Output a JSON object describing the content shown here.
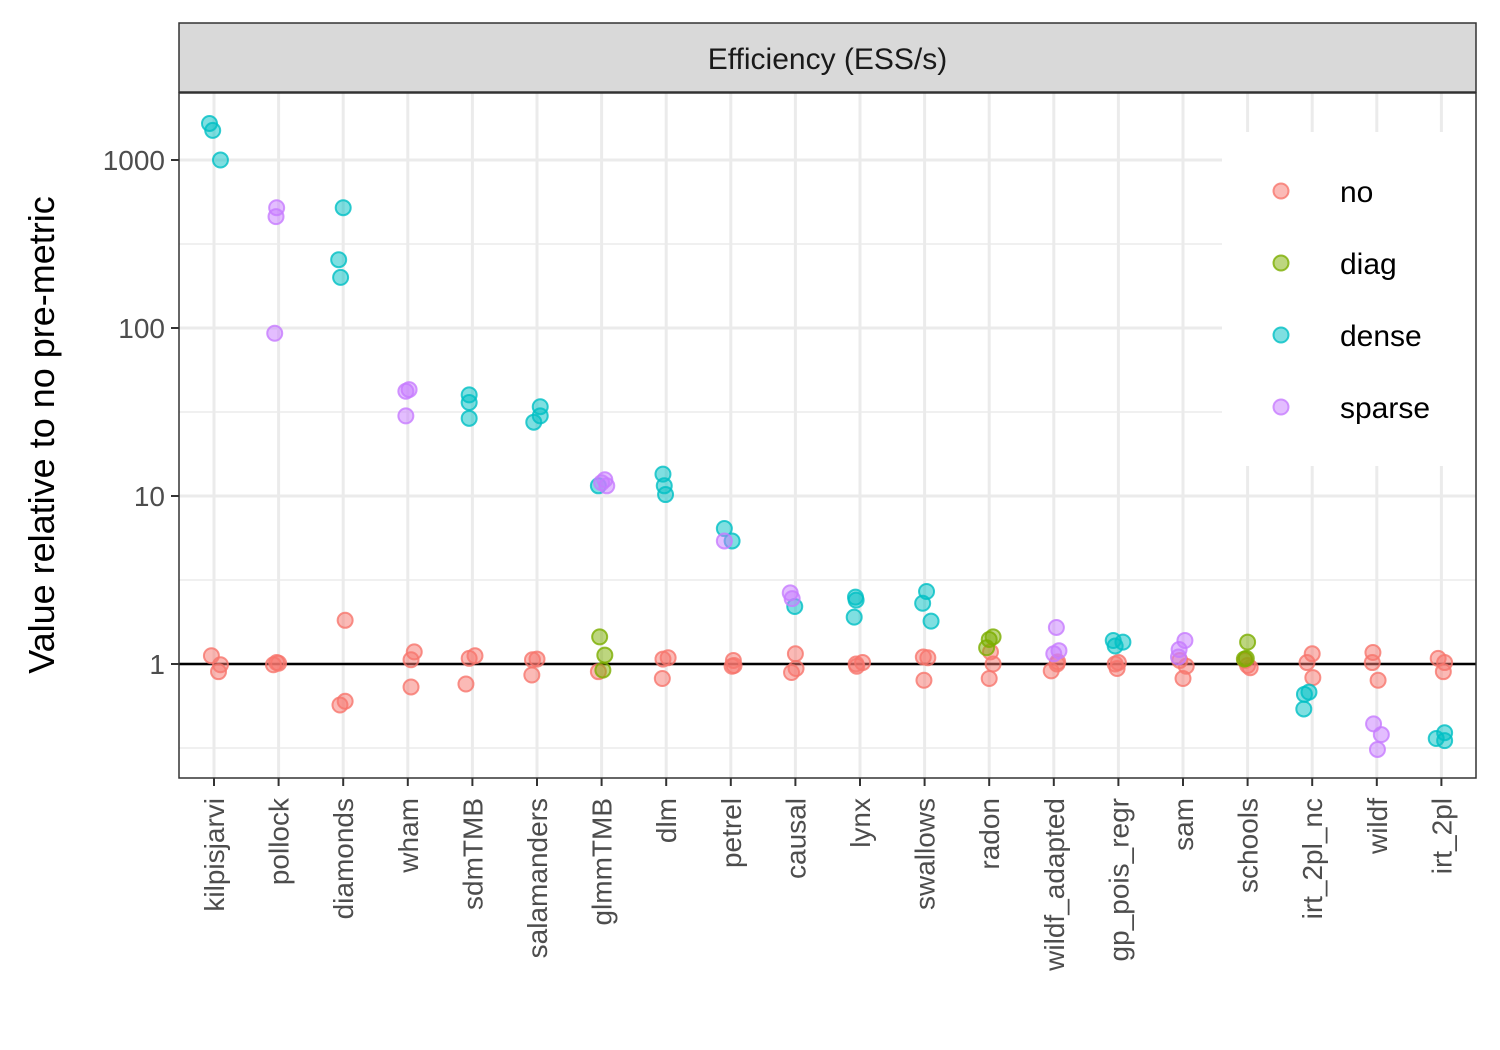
{
  "chart_data": {
    "type": "scatter",
    "facet_title": "Efficiency (ESS/s)",
    "xlabel": "",
    "ylabel": "Value relative to no pre-metric",
    "y_scale": "log10",
    "ylim": [
      0.22,
      2500
    ],
    "y_ticks": [
      1,
      10,
      100,
      1000
    ],
    "y_tick_labels": [
      "1",
      "10",
      "100",
      "1000"
    ],
    "reference_line_y": 1,
    "grid": true,
    "legend_position": "top-right",
    "categories": [
      "kilpisjarvi",
      "pollock",
      "diamonds",
      "wham",
      "sdmTMB",
      "salamanders",
      "glmmTMB",
      "dlm",
      "petrel",
      "causal",
      "lynx",
      "swallows",
      "radon",
      "wildf_adapted",
      "gp_pois_regr",
      "sam",
      "schools",
      "irt_2pl_nc",
      "wildf",
      "irt_2pl"
    ],
    "series": [
      {
        "name": "no",
        "color": "#F8766D",
        "points": [
          {
            "x": "kilpisjarvi",
            "y": 1.12,
            "j": -0.04
          },
          {
            "x": "kilpisjarvi",
            "y": 0.99,
            "j": 0.1
          },
          {
            "x": "kilpisjarvi",
            "y": 0.9,
            "j": 0.07
          },
          {
            "x": "pollock",
            "y": 0.99,
            "j": -0.08
          },
          {
            "x": "pollock",
            "y": 1.01,
            "j": 0.0
          },
          {
            "x": "pollock",
            "y": 1.02,
            "j": -0.03
          },
          {
            "x": "diamonds",
            "y": 1.82,
            "j": 0.03
          },
          {
            "x": "diamonds",
            "y": 0.57,
            "j": -0.05
          },
          {
            "x": "diamonds",
            "y": 0.6,
            "j": 0.03
          },
          {
            "x": "wham",
            "y": 1.06,
            "j": 0.05
          },
          {
            "x": "wham",
            "y": 1.18,
            "j": 0.1
          },
          {
            "x": "wham",
            "y": 0.73,
            "j": 0.05
          },
          {
            "x": "sdmTMB",
            "y": 1.08,
            "j": -0.05
          },
          {
            "x": "sdmTMB",
            "y": 1.12,
            "j": 0.04
          },
          {
            "x": "sdmTMB",
            "y": 0.76,
            "j": -0.1
          },
          {
            "x": "salamanders",
            "y": 1.06,
            "j": -0.07
          },
          {
            "x": "salamanders",
            "y": 1.07,
            "j": 0.0
          },
          {
            "x": "salamanders",
            "y": 0.86,
            "j": -0.08
          },
          {
            "x": "glmmTMB",
            "y": 0.9,
            "j": -0.05
          },
          {
            "x": "dlm",
            "y": 1.07,
            "j": -0.05
          },
          {
            "x": "dlm",
            "y": 1.09,
            "j": 0.03
          },
          {
            "x": "dlm",
            "y": 0.82,
            "j": -0.06
          },
          {
            "x": "petrel",
            "y": 1.05,
            "j": 0.04
          },
          {
            "x": "petrel",
            "y": 0.97,
            "j": 0.02
          },
          {
            "x": "petrel",
            "y": 0.98,
            "j": 0.05
          },
          {
            "x": "causal",
            "y": 1.15,
            "j": 0.0
          },
          {
            "x": "causal",
            "y": 0.94,
            "j": 0.01
          },
          {
            "x": "causal",
            "y": 0.89,
            "j": -0.06
          },
          {
            "x": "lynx",
            "y": 1.0,
            "j": -0.06
          },
          {
            "x": "lynx",
            "y": 1.02,
            "j": 0.04
          },
          {
            "x": "lynx",
            "y": 0.97,
            "j": -0.05
          },
          {
            "x": "swallows",
            "y": 1.1,
            "j": -0.02
          },
          {
            "x": "swallows",
            "y": 1.09,
            "j": 0.05
          },
          {
            "x": "swallows",
            "y": 0.8,
            "j": -0.01
          },
          {
            "x": "radon",
            "y": 1.18,
            "j": 0.02
          },
          {
            "x": "radon",
            "y": 1.0,
            "j": 0.06
          },
          {
            "x": "radon",
            "y": 0.82,
            "j": 0.0
          },
          {
            "x": "wildf_adapted",
            "y": 0.91,
            "j": -0.04
          },
          {
            "x": "wildf_adapted",
            "y": 1.0,
            "j": 0.05
          },
          {
            "x": "wildf_adapted",
            "y": 1.03,
            "j": 0.06
          },
          {
            "x": "gp_pois_regr",
            "y": 0.94,
            "j": -0.02
          },
          {
            "x": "gp_pois_regr",
            "y": 1.0,
            "j": -0.05
          },
          {
            "x": "gp_pois_regr",
            "y": 1.02,
            "j": 0.0
          },
          {
            "x": "sam",
            "y": 0.97,
            "j": 0.05
          },
          {
            "x": "sam",
            "y": 0.82,
            "j": 0.0
          },
          {
            "x": "sam",
            "y": 1.05,
            "j": -0.05
          },
          {
            "x": "schools",
            "y": 0.98,
            "j": 0.0
          },
          {
            "x": "schools",
            "y": 0.95,
            "j": 0.04
          },
          {
            "x": "schools",
            "y": 1.05,
            "j": -0.04
          },
          {
            "x": "irt_2pl_nc",
            "y": 1.02,
            "j": -0.08
          },
          {
            "x": "irt_2pl_nc",
            "y": 1.15,
            "j": 0.0
          },
          {
            "x": "irt_2pl_nc",
            "y": 0.83,
            "j": 0.01
          },
          {
            "x": "wildf",
            "y": 1.17,
            "j": -0.06
          },
          {
            "x": "wildf",
            "y": 1.02,
            "j": -0.07
          },
          {
            "x": "wildf",
            "y": 0.8,
            "j": 0.02
          },
          {
            "x": "irt_2pl",
            "y": 1.08,
            "j": -0.05
          },
          {
            "x": "irt_2pl",
            "y": 1.02,
            "j": 0.05
          },
          {
            "x": "irt_2pl",
            "y": 0.9,
            "j": 0.03
          }
        ]
      },
      {
        "name": "diag",
        "color": "#7CAE00",
        "points": [
          {
            "x": "glmmTMB",
            "y": 1.45,
            "j": -0.03
          },
          {
            "x": "glmmTMB",
            "y": 1.13,
            "j": 0.05
          },
          {
            "x": "glmmTMB",
            "y": 0.92,
            "j": 0.02
          },
          {
            "x": "radon",
            "y": 1.25,
            "j": -0.04
          },
          {
            "x": "radon",
            "y": 1.4,
            "j": 0.0
          },
          {
            "x": "radon",
            "y": 1.45,
            "j": 0.06
          },
          {
            "x": "schools",
            "y": 1.35,
            "j": 0.0
          },
          {
            "x": "schools",
            "y": 1.07,
            "j": -0.05
          },
          {
            "x": "schools",
            "y": 1.08,
            "j": -0.02
          }
        ]
      },
      {
        "name": "dense",
        "color": "#00BFC4",
        "points": [
          {
            "x": "kilpisjarvi",
            "y": 1650,
            "j": -0.07
          },
          {
            "x": "kilpisjarvi",
            "y": 1500,
            "j": -0.02
          },
          {
            "x": "kilpisjarvi",
            "y": 1000,
            "j": 0.1
          },
          {
            "x": "diamonds",
            "y": 520,
            "j": 0.0
          },
          {
            "x": "diamonds",
            "y": 255,
            "j": -0.07
          },
          {
            "x": "diamonds",
            "y": 200,
            "j": -0.04
          },
          {
            "x": "sdmTMB",
            "y": 40,
            "j": -0.05
          },
          {
            "x": "sdmTMB",
            "y": 36,
            "j": -0.05
          },
          {
            "x": "sdmTMB",
            "y": 29,
            "j": -0.05
          },
          {
            "x": "salamanders",
            "y": 34,
            "j": 0.05
          },
          {
            "x": "salamanders",
            "y": 30,
            "j": 0.05
          },
          {
            "x": "salamanders",
            "y": 27.5,
            "j": -0.05
          },
          {
            "x": "glmmTMB",
            "y": 11.5,
            "j": -0.05
          },
          {
            "x": "dlm",
            "y": 13.5,
            "j": -0.05
          },
          {
            "x": "dlm",
            "y": 11.5,
            "j": -0.03
          },
          {
            "x": "dlm",
            "y": 10.2,
            "j": -0.01
          },
          {
            "x": "petrel",
            "y": 6.4,
            "j": -0.1
          },
          {
            "x": "petrel",
            "y": 5.4,
            "j": 0.02
          },
          {
            "x": "causal",
            "y": 2.2,
            "j": -0.01
          },
          {
            "x": "lynx",
            "y": 2.5,
            "j": -0.07
          },
          {
            "x": "lynx",
            "y": 2.4,
            "j": -0.06
          },
          {
            "x": "lynx",
            "y": 1.9,
            "j": -0.09
          },
          {
            "x": "swallows",
            "y": 2.7,
            "j": 0.03
          },
          {
            "x": "swallows",
            "y": 2.3,
            "j": -0.03
          },
          {
            "x": "swallows",
            "y": 1.8,
            "j": 0.1
          },
          {
            "x": "gp_pois_regr",
            "y": 1.38,
            "j": -0.08
          },
          {
            "x": "gp_pois_regr",
            "y": 1.35,
            "j": 0.07
          },
          {
            "x": "gp_pois_regr",
            "y": 1.28,
            "j": -0.05
          },
          {
            "x": "irt_2pl_nc",
            "y": 0.66,
            "j": -0.12
          },
          {
            "x": "irt_2pl_nc",
            "y": 0.68,
            "j": -0.05
          },
          {
            "x": "irt_2pl_nc",
            "y": 0.54,
            "j": -0.13
          },
          {
            "x": "irt_2pl",
            "y": 0.39,
            "j": 0.05
          },
          {
            "x": "irt_2pl",
            "y": 0.36,
            "j": -0.08
          },
          {
            "x": "irt_2pl",
            "y": 0.35,
            "j": 0.05
          }
        ]
      },
      {
        "name": "sparse",
        "color": "#C77CFF",
        "points": [
          {
            "x": "pollock",
            "y": 520,
            "j": -0.03
          },
          {
            "x": "pollock",
            "y": 460,
            "j": -0.04
          },
          {
            "x": "pollock",
            "y": 93,
            "j": -0.06
          },
          {
            "x": "wham",
            "y": 42,
            "j": -0.03
          },
          {
            "x": "wham",
            "y": 43,
            "j": 0.02
          },
          {
            "x": "wham",
            "y": 30,
            "j": -0.03
          },
          {
            "x": "glmmTMB",
            "y": 12.5,
            "j": 0.05
          },
          {
            "x": "glmmTMB",
            "y": 12,
            "j": 0.0
          },
          {
            "x": "glmmTMB",
            "y": 11.5,
            "j": 0.08
          },
          {
            "x": "petrel",
            "y": 5.4,
            "j": -0.1
          },
          {
            "x": "causal",
            "y": 2.65,
            "j": -0.08
          },
          {
            "x": "causal",
            "y": 2.45,
            "j": -0.05
          },
          {
            "x": "wildf_adapted",
            "y": 1.65,
            "j": 0.04
          },
          {
            "x": "wildf_adapted",
            "y": 1.2,
            "j": 0.08
          },
          {
            "x": "wildf_adapted",
            "y": 1.15,
            "j": 0.0
          },
          {
            "x": "sam",
            "y": 1.38,
            "j": 0.03
          },
          {
            "x": "sam",
            "y": 1.22,
            "j": -0.06
          },
          {
            "x": "sam",
            "y": 1.1,
            "j": -0.07
          },
          {
            "x": "wildf",
            "y": 0.44,
            "j": -0.05
          },
          {
            "x": "wildf",
            "y": 0.38,
            "j": 0.07
          },
          {
            "x": "wildf",
            "y": 0.31,
            "j": 0.01
          }
        ]
      }
    ]
  }
}
